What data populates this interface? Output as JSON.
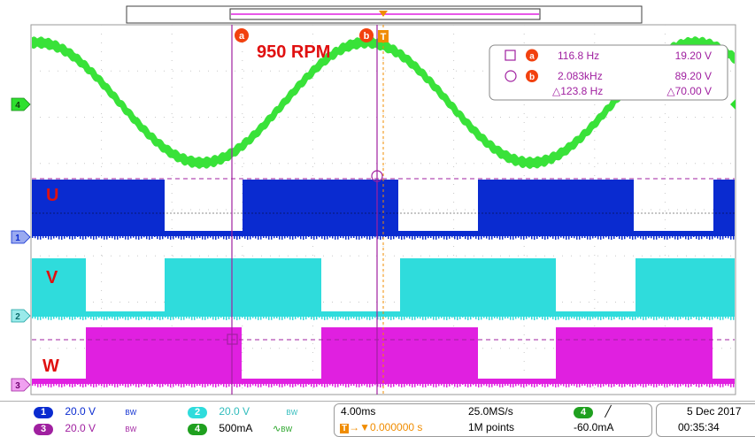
{
  "annotation": {
    "rpm": "950 RPM"
  },
  "trace_labels": {
    "u": "U",
    "v": "V",
    "w": "W"
  },
  "channel_markers": [
    "4",
    "1",
    "2",
    "3"
  ],
  "cursors": {
    "marker_a": "a",
    "marker_b": "b",
    "trigger": "T",
    "row_a": {
      "freq": "116.8 Hz",
      "volt": "19.20 V"
    },
    "row_b": {
      "freq": "2.083kHz",
      "volt": "89.20 V"
    },
    "row_delta": {
      "freq": "△123.8 Hz",
      "volt": "△70.00 V"
    }
  },
  "status": {
    "ch1": {
      "num": "1",
      "value": "20.0 V",
      "bw": "BW"
    },
    "ch2": {
      "num": "2",
      "value": "20.0 V",
      "bw": "BW"
    },
    "ch3": {
      "num": "3",
      "value": "20.0 V",
      "bw": "BW"
    },
    "ch4": {
      "num": "4",
      "value": "500mA",
      "bw": "BW"
    },
    "timebase": "4.00ms",
    "trigger_pos": "0.000000 s",
    "sample_rate": "25.0MS/s",
    "record_length": "1M points",
    "trig_ch": "4",
    "trig_level": "-60.0mA",
    "date": "5 Dec  2017",
    "time": "00:35:34"
  },
  "colors": {
    "ch1": "#0a2bd0",
    "ch2": "#2fdcdc",
    "ch3": "#e020e0",
    "ch4": "#2ee02e",
    "cursor": "#a020a0",
    "trigger": "#f08c00",
    "label": "#e01010"
  }
}
